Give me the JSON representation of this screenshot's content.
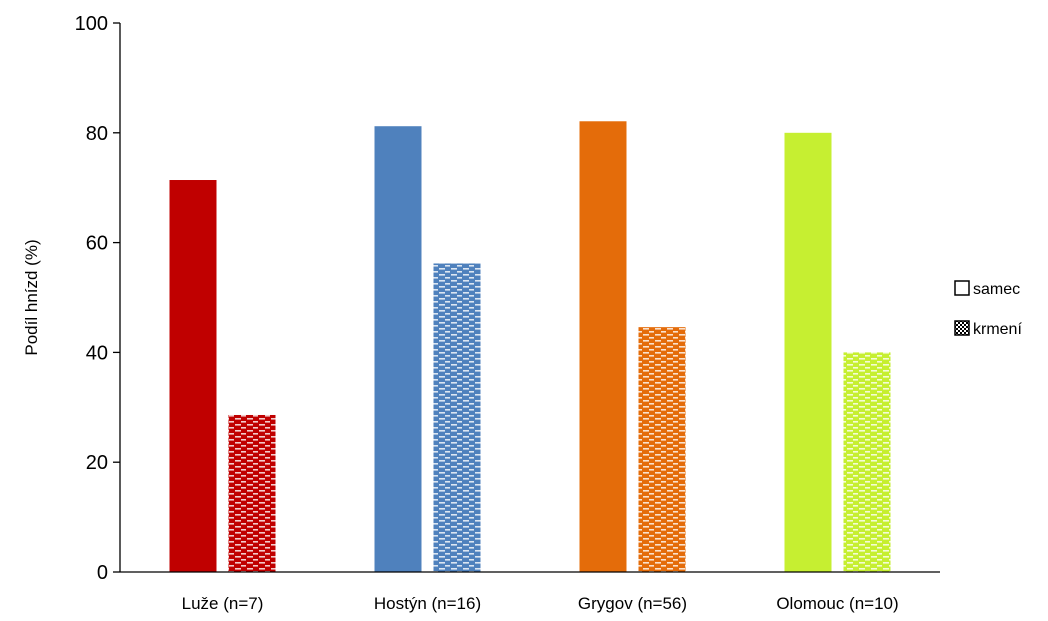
{
  "chart_data": {
    "type": "bar",
    "title": "",
    "xlabel": "",
    "ylabel": "Podíl hnízd (%)",
    "ylim": [
      0,
      100
    ],
    "yticks": [
      0,
      20,
      40,
      60,
      80,
      100
    ],
    "grid": false,
    "legend_position": "right",
    "categories": [
      "Luže (n=7)",
      "Hostýn (n=16)",
      "Grygov (n=56)",
      "Olomouc (n=10)"
    ],
    "category_colors": [
      "#c00000",
      "#4f81bd",
      "#e46c0a",
      "#c6ef31"
    ],
    "series": [
      {
        "name": "samec",
        "pattern": "solid",
        "values": [
          71.4,
          81.2,
          82.1,
          80.0
        ]
      },
      {
        "name": "krmení",
        "pattern": "dashed-grid",
        "values": [
          28.6,
          56.2,
          44.6,
          40.0
        ]
      }
    ]
  }
}
